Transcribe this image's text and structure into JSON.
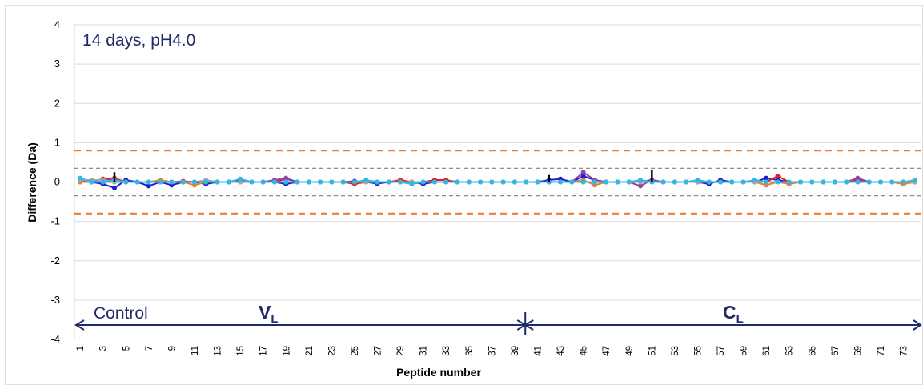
{
  "chart_data": {
    "type": "line",
    "title": "14 days,  pH4.0",
    "xlabel": "Peptide number",
    "ylabel": "Difference (Da)",
    "ylim": [
      -4,
      4
    ],
    "yticks": [
      4,
      3,
      2,
      1,
      0,
      -1,
      -2,
      -3,
      -4
    ],
    "x": [
      1,
      2,
      3,
      4,
      5,
      6,
      7,
      8,
      9,
      10,
      11,
      12,
      13,
      14,
      15,
      16,
      17,
      18,
      19,
      20,
      21,
      22,
      23,
      24,
      25,
      26,
      27,
      28,
      29,
      30,
      31,
      32,
      33,
      34,
      35,
      36,
      37,
      38,
      39,
      40,
      41,
      42,
      43,
      44,
      45,
      46,
      47,
      48,
      49,
      50,
      51,
      52,
      53,
      54,
      55,
      56,
      57,
      58,
      59,
      60,
      61,
      62,
      63,
      64,
      65,
      66,
      67,
      68,
      69,
      70,
      71,
      72,
      73,
      74
    ],
    "xtick_labels": [
      "1",
      "3",
      "5",
      "7",
      "9",
      "11",
      "13",
      "15",
      "17",
      "19",
      "21",
      "23",
      "25",
      "27",
      "29",
      "31",
      "33",
      "35",
      "37",
      "39",
      "41",
      "43",
      "45",
      "47",
      "49",
      "51",
      "53",
      "55",
      "57",
      "59",
      "61",
      "63",
      "65",
      "67",
      "69",
      "71",
      "73"
    ],
    "grid": "horizontal",
    "reference_lines": [
      {
        "y": 0.8,
        "style": "dashed",
        "color": "#ED7D31"
      },
      {
        "y": -0.8,
        "style": "dashed",
        "color": "#ED7D31"
      },
      {
        "y": 0.35,
        "style": "dashed",
        "color": "#7f7f7f"
      },
      {
        "y": -0.35,
        "style": "dashed",
        "color": "#7f7f7f"
      }
    ],
    "series": [
      {
        "color": "#1F1FD0",
        "values": [
          0.02,
          0.0,
          -0.05,
          -0.15,
          0.05,
          0.0,
          -0.1,
          0.0,
          -0.08,
          0.0,
          0.0,
          -0.05,
          0.0,
          0.0,
          0.05,
          0.0,
          0.0,
          0.0,
          -0.05,
          0.0,
          0.0,
          0.0,
          0.0,
          0.0,
          0.02,
          0.0,
          -0.04,
          0.0,
          0.0,
          0.0,
          -0.05,
          0.0,
          0.0,
          0.0,
          0.0,
          0.0,
          0.0,
          0.0,
          0.0,
          0.0,
          0.0,
          0.05,
          0.08,
          0.0,
          0.15,
          0.05,
          0.0,
          0.0,
          0.0,
          0.0,
          0.05,
          0.0,
          0.0,
          0.0,
          0.0,
          -0.05,
          0.05,
          0.0,
          0.0,
          0.0,
          0.1,
          0.05,
          0.0,
          0.0,
          0.0,
          0.0,
          0.0,
          0.0,
          0.05,
          0.0,
          0.0,
          0.0,
          0.0,
          0.0
        ]
      },
      {
        "color": "#E02020",
        "values": [
          0.05,
          0.0,
          0.08,
          0.1,
          0.0,
          0.0,
          0.0,
          0.0,
          0.0,
          0.02,
          0.0,
          0.0,
          0.0,
          0.0,
          0.0,
          0.0,
          0.0,
          0.0,
          0.08,
          0.0,
          0.0,
          0.0,
          0.0,
          0.0,
          -0.05,
          0.0,
          0.0,
          0.0,
          0.05,
          0.0,
          0.0,
          0.05,
          0.05,
          0.0,
          0.0,
          0.0,
          0.0,
          0.0,
          0.0,
          0.0,
          0.0,
          0.0,
          0.0,
          0.0,
          0.0,
          0.0,
          0.0,
          0.0,
          0.0,
          0.0,
          0.0,
          0.0,
          0.0,
          0.0,
          0.0,
          0.0,
          0.0,
          0.0,
          0.0,
          0.0,
          0.0,
          0.15,
          0.0,
          0.0,
          0.0,
          0.0,
          0.0,
          0.0,
          0.05,
          0.0,
          0.0,
          0.0,
          -0.05,
          0.0
        ]
      },
      {
        "color": "#8E44AD",
        "values": [
          0.0,
          0.03,
          0.05,
          0.05,
          0.0,
          0.0,
          0.0,
          0.0,
          0.0,
          0.0,
          0.0,
          0.0,
          0.0,
          0.0,
          0.0,
          0.0,
          0.0,
          0.05,
          0.1,
          0.0,
          0.0,
          0.0,
          0.0,
          0.0,
          0.0,
          0.0,
          0.0,
          0.0,
          0.0,
          0.0,
          0.0,
          0.0,
          0.0,
          0.0,
          0.0,
          0.0,
          0.0,
          0.0,
          0.0,
          0.0,
          0.0,
          0.0,
          0.0,
          0.0,
          0.25,
          0.05,
          0.0,
          0.0,
          0.0,
          -0.1,
          0.05,
          0.0,
          0.0,
          0.0,
          0.0,
          0.0,
          0.0,
          0.0,
          0.0,
          0.0,
          0.0,
          0.0,
          0.0,
          0.0,
          0.0,
          0.0,
          0.0,
          0.0,
          0.1,
          0.0,
          0.0,
          0.0,
          0.0,
          0.0
        ]
      },
      {
        "color": "#ED7D31",
        "values": [
          0.0,
          0.0,
          0.0,
          0.0,
          0.0,
          0.0,
          0.0,
          0.05,
          0.0,
          0.0,
          -0.08,
          0.0,
          0.0,
          0.0,
          0.0,
          0.0,
          0.0,
          0.0,
          0.0,
          0.0,
          0.0,
          0.0,
          0.0,
          0.0,
          0.0,
          0.0,
          0.0,
          0.0,
          0.0,
          0.0,
          0.0,
          0.0,
          0.0,
          0.0,
          0.0,
          0.0,
          0.0,
          0.0,
          0.0,
          0.0,
          0.0,
          0.0,
          0.0,
          0.0,
          0.05,
          -0.08,
          0.0,
          0.0,
          0.0,
          0.0,
          0.0,
          0.0,
          0.0,
          0.0,
          0.0,
          0.0,
          0.0,
          0.0,
          0.0,
          0.0,
          -0.08,
          0.0,
          -0.05,
          0.0,
          0.0,
          0.0,
          0.0,
          0.0,
          0.0,
          0.0,
          0.0,
          0.0,
          -0.05,
          0.0
        ]
      },
      {
        "color": "#A5A5A5",
        "values": [
          0.05,
          0.05,
          0.05,
          0.0,
          0.0,
          0.0,
          0.0,
          0.0,
          0.0,
          0.0,
          0.0,
          0.05,
          0.0,
          0.0,
          0.0,
          0.0,
          0.0,
          0.0,
          0.0,
          0.0,
          0.0,
          0.0,
          0.0,
          0.0,
          0.0,
          0.0,
          0.0,
          0.0,
          0.0,
          0.0,
          0.0,
          0.0,
          0.0,
          0.0,
          0.0,
          0.0,
          0.0,
          0.0,
          0.0,
          0.0,
          0.0,
          0.0,
          0.0,
          0.0,
          0.0,
          0.0,
          0.0,
          0.0,
          0.0,
          0.0,
          0.0,
          0.0,
          0.0,
          0.0,
          0.0,
          0.0,
          0.0,
          0.0,
          0.0,
          0.0,
          0.0,
          0.0,
          0.0,
          0.0,
          0.0,
          0.0,
          0.0,
          0.0,
          0.0,
          0.0,
          0.0,
          0.0,
          0.0,
          0.0
        ]
      },
      {
        "color": "#2EB8E6",
        "values": [
          0.1,
          0.0,
          0.0,
          0.05,
          0.0,
          0.0,
          0.0,
          0.0,
          0.0,
          0.0,
          0.0,
          0.0,
          0.0,
          0.0,
          0.08,
          0.0,
          0.0,
          0.0,
          0.0,
          0.0,
          0.0,
          0.0,
          0.0,
          0.0,
          0.0,
          0.05,
          0.0,
          0.0,
          0.0,
          -0.05,
          0.0,
          0.0,
          0.0,
          0.0,
          0.0,
          0.0,
          0.0,
          0.0,
          0.0,
          0.0,
          0.0,
          0.0,
          0.0,
          0.0,
          0.0,
          0.0,
          0.0,
          0.0,
          0.0,
          0.05,
          0.0,
          0.0,
          0.0,
          0.0,
          0.05,
          0.0,
          0.0,
          0.0,
          0.0,
          0.05,
          0.0,
          0.0,
          0.0,
          0.0,
          0.0,
          0.0,
          0.0,
          0.0,
          0.0,
          0.0,
          0.0,
          0.0,
          0.0,
          0.05
        ]
      },
      {
        "color": "#000000",
        "values": [
          0.0,
          0.0,
          0.0,
          0.25,
          0.0,
          0.0,
          0.0,
          0.0,
          0.0,
          0.0,
          0.0,
          0.0,
          0.0,
          0.0,
          0.0,
          0.0,
          0.0,
          0.0,
          0.0,
          0.0,
          0.0,
          0.0,
          0.0,
          0.0,
          0.0,
          0.0,
          0.0,
          0.0,
          0.0,
          0.0,
          0.0,
          0.0,
          0.0,
          0.0,
          0.0,
          0.0,
          0.0,
          0.0,
          0.0,
          0.0,
          0.0,
          0.18,
          0.0,
          0.0,
          0.0,
          0.0,
          0.0,
          0.0,
          0.0,
          0.0,
          0.3,
          0.0,
          0.0,
          0.0,
          0.0,
          0.0,
          0.0,
          0.0,
          0.0,
          0.0,
          0.0,
          0.0,
          0.0,
          0.0,
          0.0,
          0.0,
          0.0,
          0.0,
          0.0,
          0.0,
          0.0,
          0.0,
          0.0,
          0.0
        ]
      }
    ],
    "annotations": [
      {
        "text": "Control",
        "from": 1,
        "to": 40
      },
      {
        "text": "V",
        "subscript": "L",
        "from": 1,
        "to": 40
      },
      {
        "text": "C",
        "subscript": "L",
        "from": 40,
        "to": 74
      }
    ],
    "annotation_color": "#1f2a6b"
  }
}
